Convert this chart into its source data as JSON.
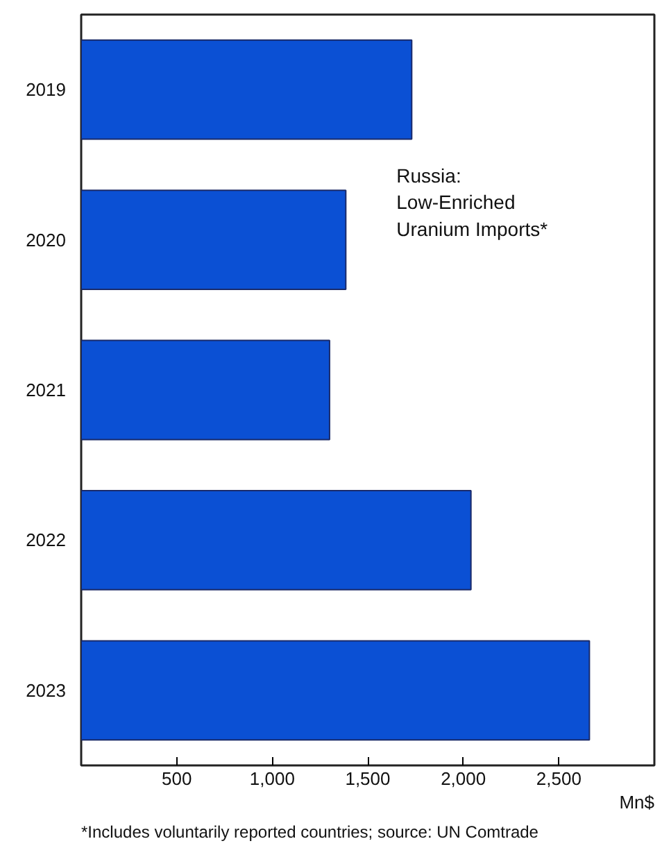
{
  "chart_data": {
    "type": "bar",
    "orientation": "horizontal",
    "title": "Russia:\nLow-Enriched\nUranium Imports*",
    "categories": [
      "2019",
      "2020",
      "2021",
      "2022",
      "2023"
    ],
    "values": [
      1730,
      1385,
      1300,
      2040,
      2660
    ],
    "color": "#0b50d4",
    "xlabel": "Mn$",
    "xlim": [
      0,
      3000
    ],
    "xticks": [
      {
        "value": 500,
        "label": "500"
      },
      {
        "value": 1000,
        "label": "1,000"
      },
      {
        "value": 1500,
        "label": "1,500"
      },
      {
        "value": 2000,
        "label": "2,000"
      },
      {
        "value": 2500,
        "label": "2,500"
      }
    ],
    "grid": false,
    "annotations": [
      "*Includes voluntarily reported countries; source: UN Comtrade"
    ]
  }
}
